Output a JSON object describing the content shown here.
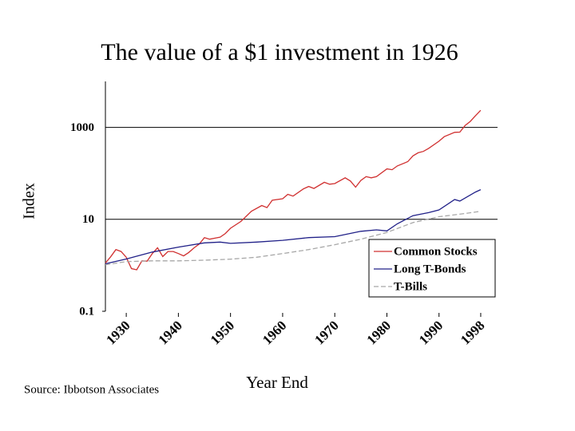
{
  "chart_data": {
    "type": "line",
    "title": "The value of a $1 investment in 1926",
    "y_label": "Index",
    "x_label": "Year End",
    "source": "Source: Ibbotson Associates",
    "log_scale_y": true,
    "grid": true,
    "legend_position": "lower right",
    "xlim": [
      1926,
      2000
    ],
    "xticks": [
      1930,
      1940,
      1950,
      1960,
      1970,
      1980,
      1990,
      1998
    ],
    "ylim": [
      0.1,
      10000
    ],
    "yticks": [
      0.1,
      10,
      1000
    ],
    "series": [
      {
        "name": "Common Stocks",
        "color": "#d03030",
        "dash": false,
        "x": [
          1926,
          1927,
          1928,
          1929,
          1930,
          1931,
          1932,
          1933,
          1934,
          1935,
          1936,
          1937,
          1938,
          1939,
          1940,
          1941,
          1942,
          1943,
          1944,
          1945,
          1946,
          1947,
          1948,
          1949,
          1950,
          1952,
          1954,
          1956,
          1957,
          1958,
          1960,
          1961,
          1962,
          1964,
          1965,
          1966,
          1968,
          1969,
          1970,
          1972,
          1973,
          1974,
          1975,
          1976,
          1977,
          1978,
          1980,
          1981,
          1982,
          1984,
          1985,
          1986,
          1987,
          1988,
          1990,
          1991,
          1993,
          1994,
          1995,
          1996,
          1997,
          1998
        ],
        "values": [
          1.12,
          1.53,
          2.2,
          2.0,
          1.5,
          0.85,
          0.8,
          1.25,
          1.23,
          1.8,
          2.4,
          1.55,
          2.0,
          2.0,
          1.8,
          1.6,
          1.9,
          2.4,
          2.9,
          4.0,
          3.7,
          3.9,
          4.1,
          4.9,
          6.4,
          9.0,
          15.0,
          20.0,
          18.0,
          26.0,
          28.0,
          35.0,
          32.0,
          46.0,
          52.0,
          47.0,
          64.0,
          58.0,
          60.0,
          80.0,
          68.0,
          50.0,
          70.0,
          85.0,
          80.0,
          85.0,
          125.0,
          120.0,
          145.0,
          180.0,
          240.0,
          280.0,
          300.0,
          350.0,
          500.0,
          630.0,
          780.0,
          790.0,
          1100.0,
          1350.0,
          1800.0,
          2351.0
        ]
      },
      {
        "name": "Long T-Bonds",
        "color": "#202088",
        "dash": false,
        "x": [
          1926,
          1930,
          1935,
          1940,
          1945,
          1948,
          1950,
          1955,
          1960,
          1965,
          1970,
          1975,
          1978,
          1980,
          1982,
          1985,
          1988,
          1990,
          1993,
          1994,
          1997,
          1998
        ],
        "values": [
          1.08,
          1.37,
          1.94,
          2.49,
          3.08,
          3.2,
          3.0,
          3.2,
          3.5,
          4.0,
          4.2,
          5.5,
          5.9,
          5.6,
          8.0,
          12.0,
          14.0,
          16.0,
          27.0,
          25.0,
          39.3,
          44.2
        ]
      },
      {
        "name": "T-Bills",
        "color": "#a8a8a8",
        "dash": true,
        "x": [
          1926,
          1930,
          1935,
          1940,
          1945,
          1950,
          1955,
          1960,
          1965,
          1970,
          1975,
          1980,
          1985,
          1990,
          1995,
          1998
        ],
        "values": [
          1.03,
          1.2,
          1.25,
          1.25,
          1.29,
          1.36,
          1.5,
          1.8,
          2.2,
          2.8,
          3.7,
          5.2,
          8.5,
          11.4,
          13.4,
          15.0
        ]
      }
    ]
  }
}
